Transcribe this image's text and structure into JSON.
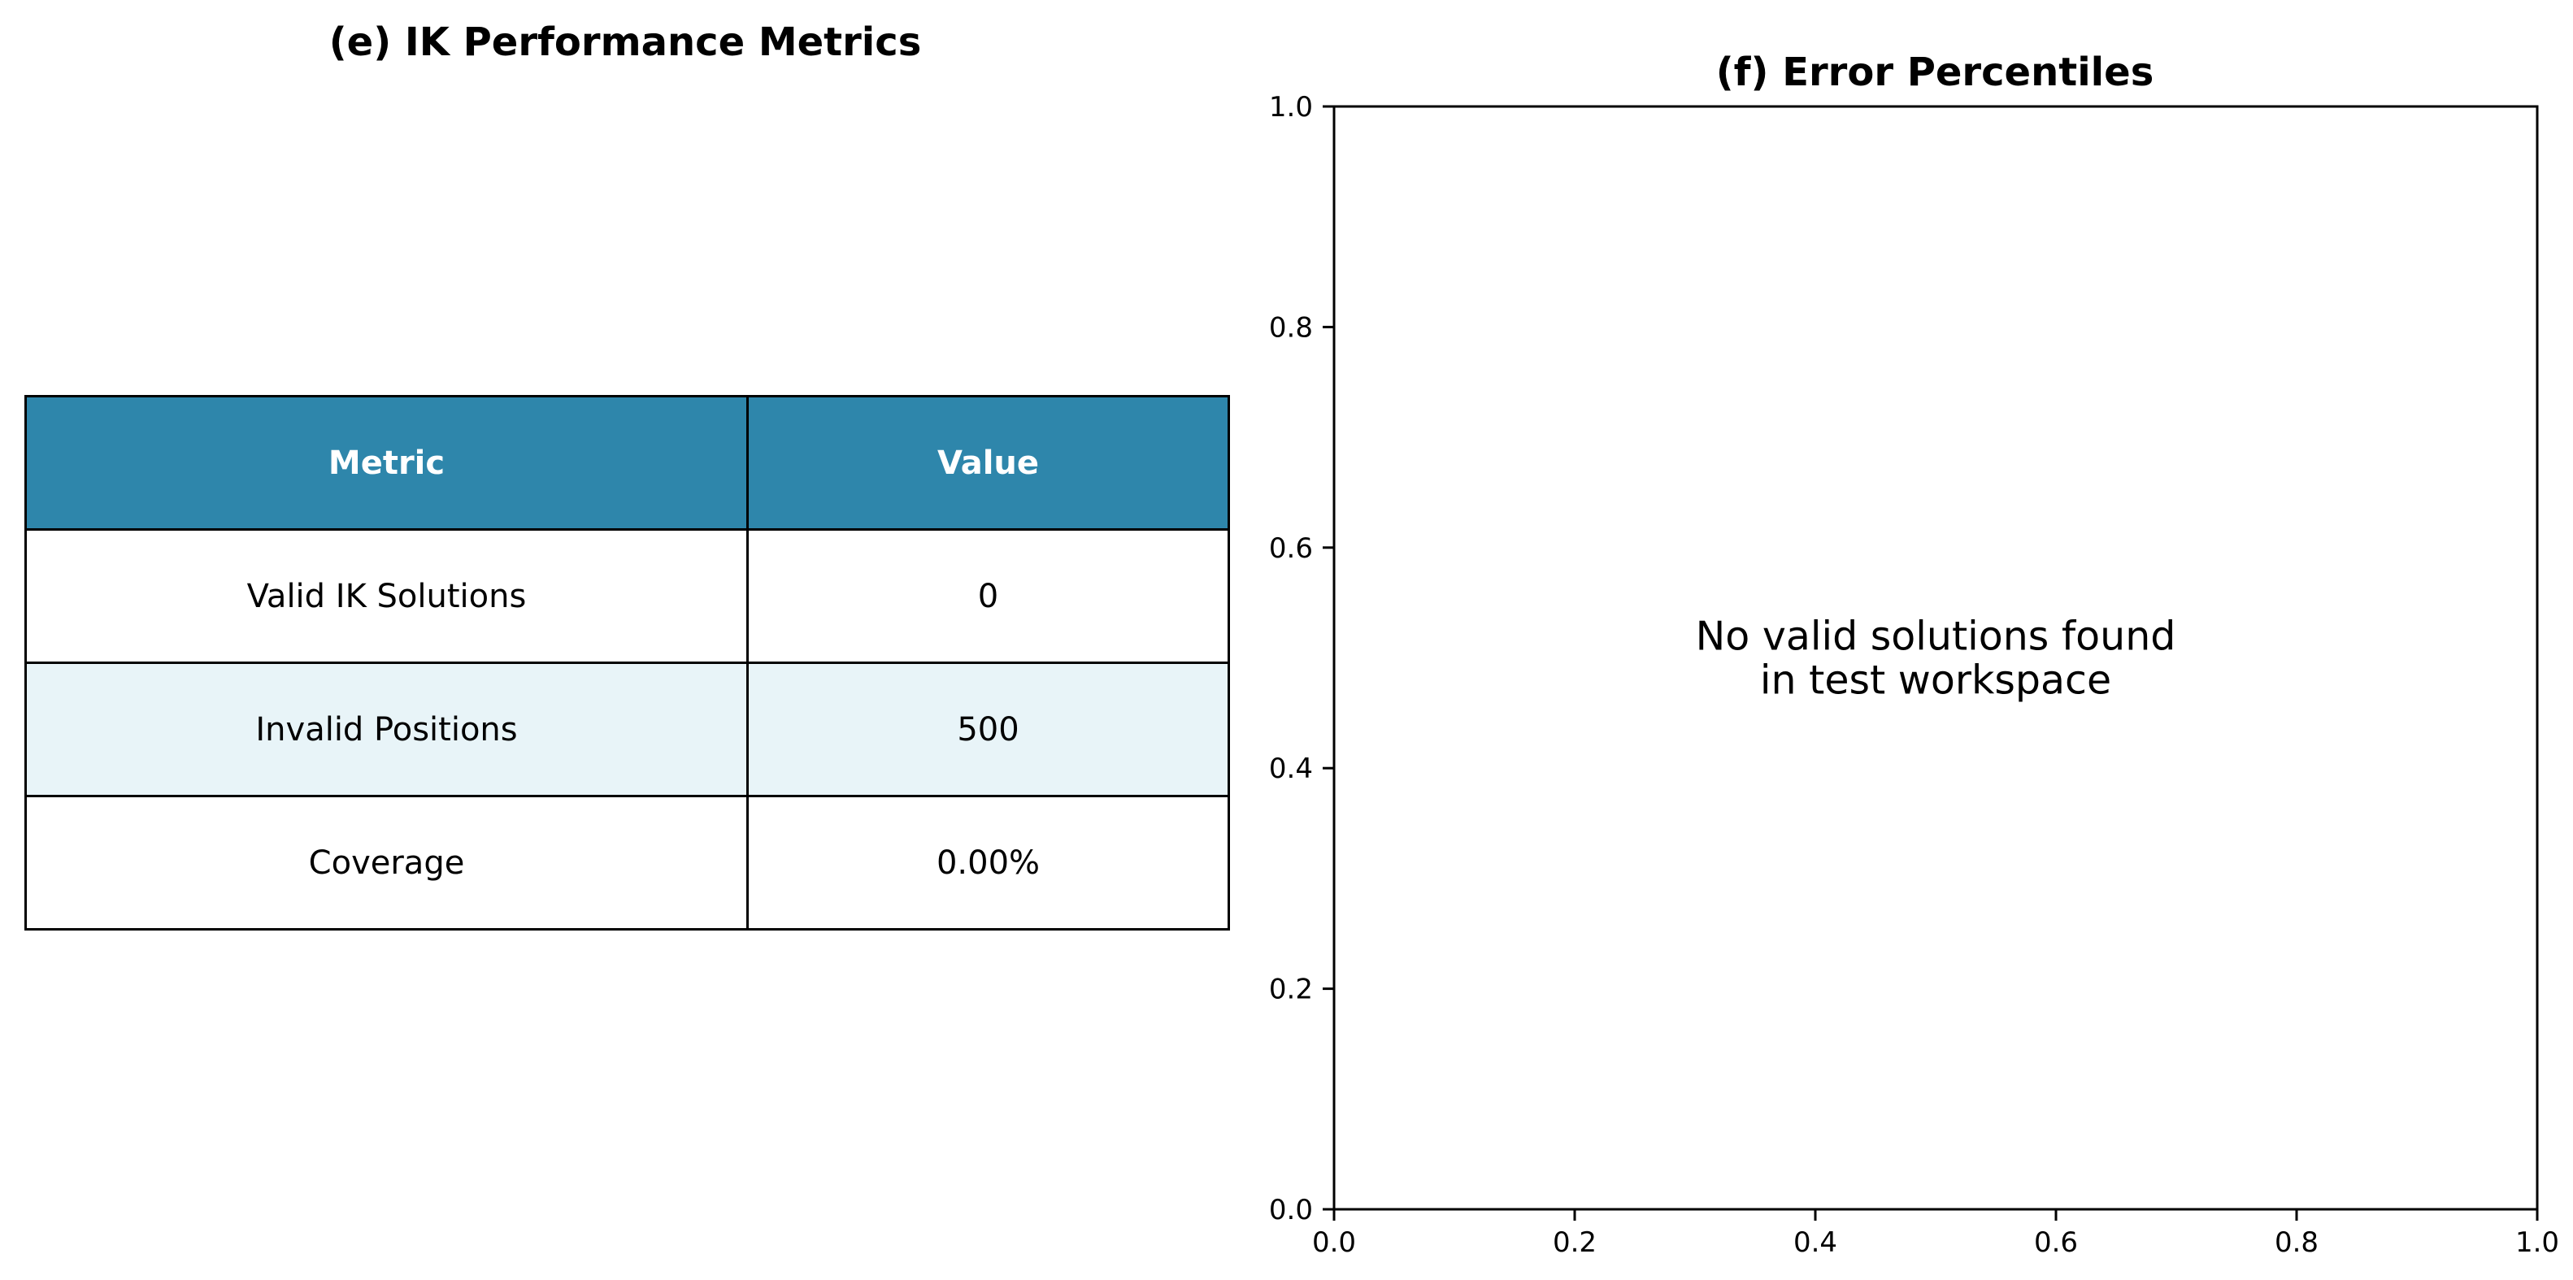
{
  "panel_e": {
    "title": "(e) IK Performance Metrics",
    "header_color": "#2e86ab",
    "alt_row_color": "#e8f4f8",
    "columns": [
      "Metric",
      "Value"
    ],
    "rows": [
      {
        "metric": "Valid IK Solutions",
        "value": "0"
      },
      {
        "metric": "Invalid Positions",
        "value": "500"
      },
      {
        "metric": "Coverage",
        "value": "0.00%"
      }
    ]
  },
  "panel_f": {
    "title": "(f) Error Percentiles",
    "note_lines": [
      "No valid solutions found",
      "in test workspace"
    ]
  },
  "chart_data": [
    {
      "type": "table",
      "title": "(e) IK Performance Metrics",
      "columns": [
        "Metric",
        "Value"
      ],
      "rows": [
        [
          "Valid IK Solutions",
          "0"
        ],
        [
          "Invalid Positions",
          "500"
        ],
        [
          "Coverage",
          "0.00%"
        ]
      ]
    },
    {
      "type": "bar",
      "title": "(f) Error Percentiles",
      "xlabel": "",
      "ylabel": "",
      "xlim": [
        0.0,
        1.0
      ],
      "ylim": [
        0.0,
        1.0
      ],
      "xticks": [
        "0.0",
        "0.2",
        "0.4",
        "0.6",
        "0.8",
        "1.0"
      ],
      "yticks": [
        "0.0",
        "0.2",
        "0.4",
        "0.6",
        "0.8",
        "1.0"
      ],
      "series": [],
      "grid": false,
      "annotation": [
        "No valid solutions found",
        "in test workspace"
      ]
    }
  ]
}
